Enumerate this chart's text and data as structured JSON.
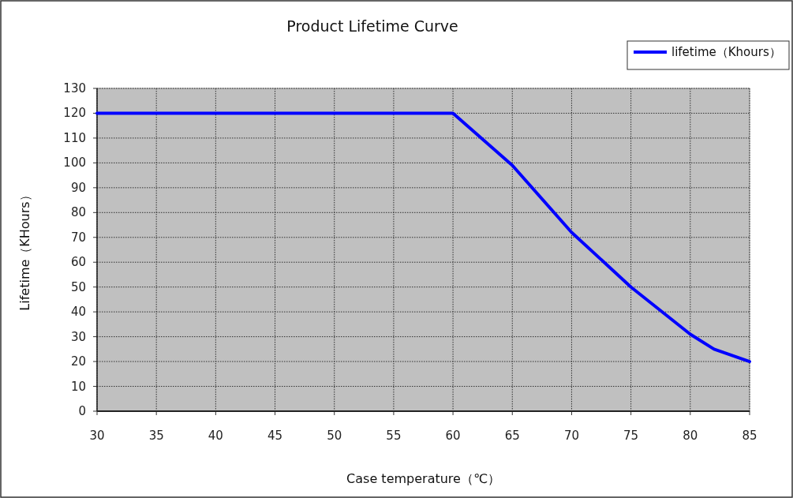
{
  "chart_data": {
    "type": "line",
    "title": "Product Lifetime Curve",
    "xlabel": "Case temperature（℃）",
    "ylabel": "Lifetime（KHours）",
    "x": [
      30,
      60,
      65,
      70,
      75,
      80,
      82,
      85
    ],
    "series": [
      {
        "name": "lifetime（Khours）",
        "color": "#0000ff",
        "values": [
          120,
          120,
          99,
          72,
          50,
          31,
          25,
          20
        ]
      }
    ],
    "xlim": [
      30,
      85
    ],
    "xticks": [
      30,
      35,
      40,
      45,
      50,
      55,
      60,
      65,
      70,
      75,
      80,
      85
    ],
    "ylim": [
      0,
      130
    ],
    "yticks": [
      0,
      10,
      20,
      30,
      40,
      50,
      60,
      70,
      80,
      90,
      100,
      110,
      120,
      130
    ],
    "grid": true,
    "legend": "top right",
    "marker": "none",
    "line_style": "solid"
  }
}
